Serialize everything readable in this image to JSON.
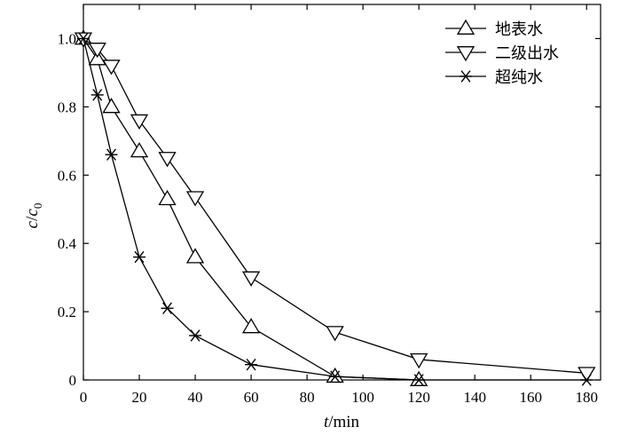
{
  "chart_data": {
    "type": "line",
    "xlabel_var": "t",
    "xlabel_unit": "/min",
    "ylabel_var": "c",
    "ylabel_sep": "/",
    "ylabel_var2": "c",
    "ylabel_sub": "0",
    "xlim": [
      0,
      185
    ],
    "ylim": [
      0,
      1.1
    ],
    "xticks": [
      0,
      20,
      40,
      60,
      80,
      100,
      120,
      140,
      160,
      180
    ],
    "xtick_labels": [
      "0",
      "20",
      "40",
      "60",
      "80",
      "100",
      "120",
      "140",
      "160",
      "180"
    ],
    "yticks": [
      0,
      0.2,
      0.4,
      0.6,
      0.8,
      1.0
    ],
    "ytick_labels": [
      "0",
      "0.2",
      "0.4",
      "0.6",
      "0.8",
      "1.0"
    ],
    "grid": false,
    "legend_position": "top-right",
    "series": [
      {
        "name": "地表水",
        "marker": "triangle-up",
        "x": [
          0,
          5,
          10,
          20,
          30,
          40,
          60,
          90,
          120
        ],
        "y": [
          1.0,
          0.94,
          0.8,
          0.67,
          0.53,
          0.36,
          0.155,
          0.01,
          0.0
        ]
      },
      {
        "name": "二级出水",
        "marker": "triangle-down",
        "x": [
          0,
          5,
          10,
          20,
          30,
          40,
          60,
          90,
          120,
          180
        ],
        "y": [
          1.0,
          0.97,
          0.92,
          0.76,
          0.65,
          0.535,
          0.3,
          0.14,
          0.06,
          0.02
        ]
      },
      {
        "name": "超纯水",
        "marker": "asterisk",
        "x": [
          0,
          5,
          10,
          20,
          30,
          40,
          60,
          90,
          120,
          180
        ],
        "y": [
          1.0,
          0.835,
          0.66,
          0.36,
          0.21,
          0.13,
          0.045,
          0.01,
          0.0,
          0.0
        ]
      }
    ]
  }
}
